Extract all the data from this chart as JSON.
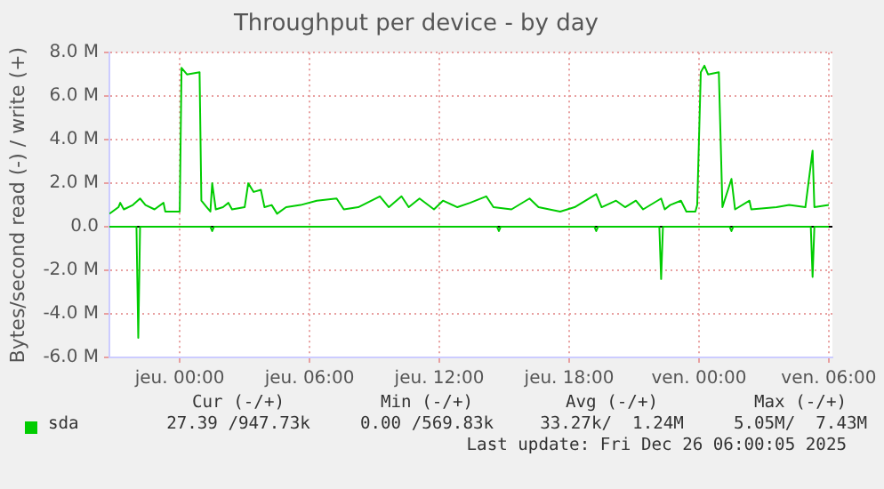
{
  "chart_data": {
    "type": "line",
    "title": "Throughput per device - by day",
    "ylabel": "Bytes/second read (-) / write (+)",
    "xlim": [
      "2025-12-24T20:45",
      "2025-12-26T06:10"
    ],
    "xticks": [
      {
        "value": "2025-12-25T00:00",
        "label": "jeu. 00:00"
      },
      {
        "value": "2025-12-25T06:00",
        "label": "jeu. 06:00"
      },
      {
        "value": "2025-12-25T12:00",
        "label": "jeu. 12:00"
      },
      {
        "value": "2025-12-25T18:00",
        "label": "jeu. 18:00"
      },
      {
        "value": "2025-12-26T00:00",
        "label": "ven. 00:00"
      },
      {
        "value": "2025-12-26T06:00",
        "label": "ven. 06:00"
      }
    ],
    "ylim": [
      -6,
      8
    ],
    "yticks": [
      {
        "value": -6,
        "label": "-6.0 M"
      },
      {
        "value": -4,
        "label": "-4.0 M"
      },
      {
        "value": -2,
        "label": "-2.0 M"
      },
      {
        "value": 0,
        "label": "0.0"
      },
      {
        "value": 2,
        "label": "2.0 M"
      },
      {
        "value": 4,
        "label": "4.0 M"
      },
      {
        "value": 6,
        "label": "6.0 M"
      },
      {
        "value": 8,
        "label": "8.0 M"
      }
    ],
    "grid": true,
    "legend": "bottom left",
    "marker": "none",
    "line_style": "solid",
    "ref_lines": [
      {
        "axis": "y",
        "value": 0,
        "color": "#000000"
      }
    ],
    "series": [
      {
        "name": "sda",
        "color": "#00cc00",
        "x": [
          "2025-12-24T20:45",
          "2025-12-24T21:10",
          "2025-12-24T21:15",
          "2025-12-24T21:25",
          "2025-12-24T21:50",
          "2025-12-24T22:10",
          "2025-12-24T22:25",
          "2025-12-24T22:50",
          "2025-12-24T23:15",
          "2025-12-24T23:20",
          "2025-12-25T00:00",
          "2025-12-25T00:05",
          "2025-12-25T00:20",
          "2025-12-25T00:55",
          "2025-12-25T01:00",
          "2025-12-25T01:15",
          "2025-12-25T01:25",
          "2025-12-25T01:30",
          "2025-12-25T01:40",
          "2025-12-25T02:00",
          "2025-12-25T02:15",
          "2025-12-25T02:25",
          "2025-12-25T03:00",
          "2025-12-25T03:10",
          "2025-12-25T03:25",
          "2025-12-25T03:45",
          "2025-12-25T03:55",
          "2025-12-25T04:15",
          "2025-12-25T04:30",
          "2025-12-25T04:55",
          "2025-12-25T05:35",
          "2025-12-25T06:20",
          "2025-12-25T07:15",
          "2025-12-25T07:35",
          "2025-12-25T08:15",
          "2025-12-25T09:15",
          "2025-12-25T09:40",
          "2025-12-25T10:15",
          "2025-12-25T10:35",
          "2025-12-25T11:05",
          "2025-12-25T11:45",
          "2025-12-25T12:10",
          "2025-12-25T12:50",
          "2025-12-25T13:25",
          "2025-12-25T14:10",
          "2025-12-25T14:30",
          "2025-12-25T15:20",
          "2025-12-25T16:10",
          "2025-12-25T16:35",
          "2025-12-25T17:35",
          "2025-12-25T18:15",
          "2025-12-25T19:15",
          "2025-12-25T19:30",
          "2025-12-25T20:10",
          "2025-12-25T20:35",
          "2025-12-25T21:05",
          "2025-12-25T21:25",
          "2025-12-25T22:15",
          "2025-12-25T22:25",
          "2025-12-25T22:40",
          "2025-12-25T23:10",
          "2025-12-25T23:25",
          "2025-12-25T23:50",
          "2025-12-25T23:55",
          "2025-12-26T00:05",
          "2025-12-26T00:15",
          "2025-12-26T00:25",
          "2025-12-26T00:55",
          "2025-12-26T01:05",
          "2025-12-26T01:30",
          "2025-12-26T01:40",
          "2025-12-26T02:20",
          "2025-12-26T02:25",
          "2025-12-26T03:35",
          "2025-12-26T04:10",
          "2025-12-26T04:55",
          "2025-12-26T05:15",
          "2025-12-26T05:20",
          "2025-12-26T06:00"
        ],
        "values": [
          0.6,
          0.9,
          1.1,
          0.8,
          1.0,
          1.3,
          1.0,
          0.8,
          1.1,
          0.7,
          0.7,
          7.3,
          7.0,
          7.1,
          1.2,
          0.9,
          0.7,
          2.0,
          0.8,
          0.9,
          1.1,
          0.8,
          0.9,
          2.0,
          1.6,
          1.7,
          0.9,
          1.0,
          0.6,
          0.9,
          1.0,
          1.2,
          1.3,
          0.8,
          0.9,
          1.4,
          0.9,
          1.4,
          0.9,
          1.3,
          0.8,
          1.2,
          0.9,
          1.1,
          1.4,
          0.9,
          0.8,
          1.3,
          0.9,
          0.7,
          0.9,
          1.5,
          0.9,
          1.2,
          0.9,
          1.2,
          0.8,
          1.3,
          0.8,
          1.0,
          1.2,
          0.7,
          0.7,
          1.0,
          7.1,
          7.4,
          7.0,
          7.1,
          0.9,
          2.2,
          0.8,
          1.2,
          0.8,
          0.9,
          1.0,
          0.9,
          3.5,
          0.9,
          1.0
        ]
      },
      {
        "color": "#00cc00",
        "x": [
          "2025-12-24T20:45",
          "2025-12-24T22:00",
          "2025-12-24T22:05",
          "2025-12-24T22:10",
          "2025-12-25T01:25",
          "2025-12-25T01:30",
          "2025-12-25T01:35",
          "2025-12-25T14:40",
          "2025-12-25T14:45",
          "2025-12-25T14:50",
          "2025-12-25T19:10",
          "2025-12-25T19:15",
          "2025-12-25T19:20",
          "2025-12-25T22:10",
          "2025-12-25T22:15",
          "2025-12-25T22:20",
          "2025-12-26T01:25",
          "2025-12-26T01:30",
          "2025-12-26T01:35",
          "2025-12-26T05:10",
          "2025-12-26T05:15",
          "2025-12-26T05:20",
          "2025-12-26T06:00"
        ],
        "values": [
          0,
          0,
          -5.1,
          0,
          0,
          -0.2,
          0,
          0,
          -0.2,
          0,
          0,
          -0.2,
          0,
          0,
          -2.4,
          0,
          0,
          -0.2,
          0,
          0,
          -2.3,
          0,
          0
        ]
      }
    ],
    "annotations": [
      "Cur (-/+)",
      "Min (-/+)",
      "Avg (-/+)",
      "Max (-/+)",
      "27.39 /947.73k",
      "0.00 /569.83k",
      "33.27k/  1.24M",
      "5.05M/  7.43M",
      "Last update: Fri Dec 26 06:00:05 2025"
    ]
  }
}
